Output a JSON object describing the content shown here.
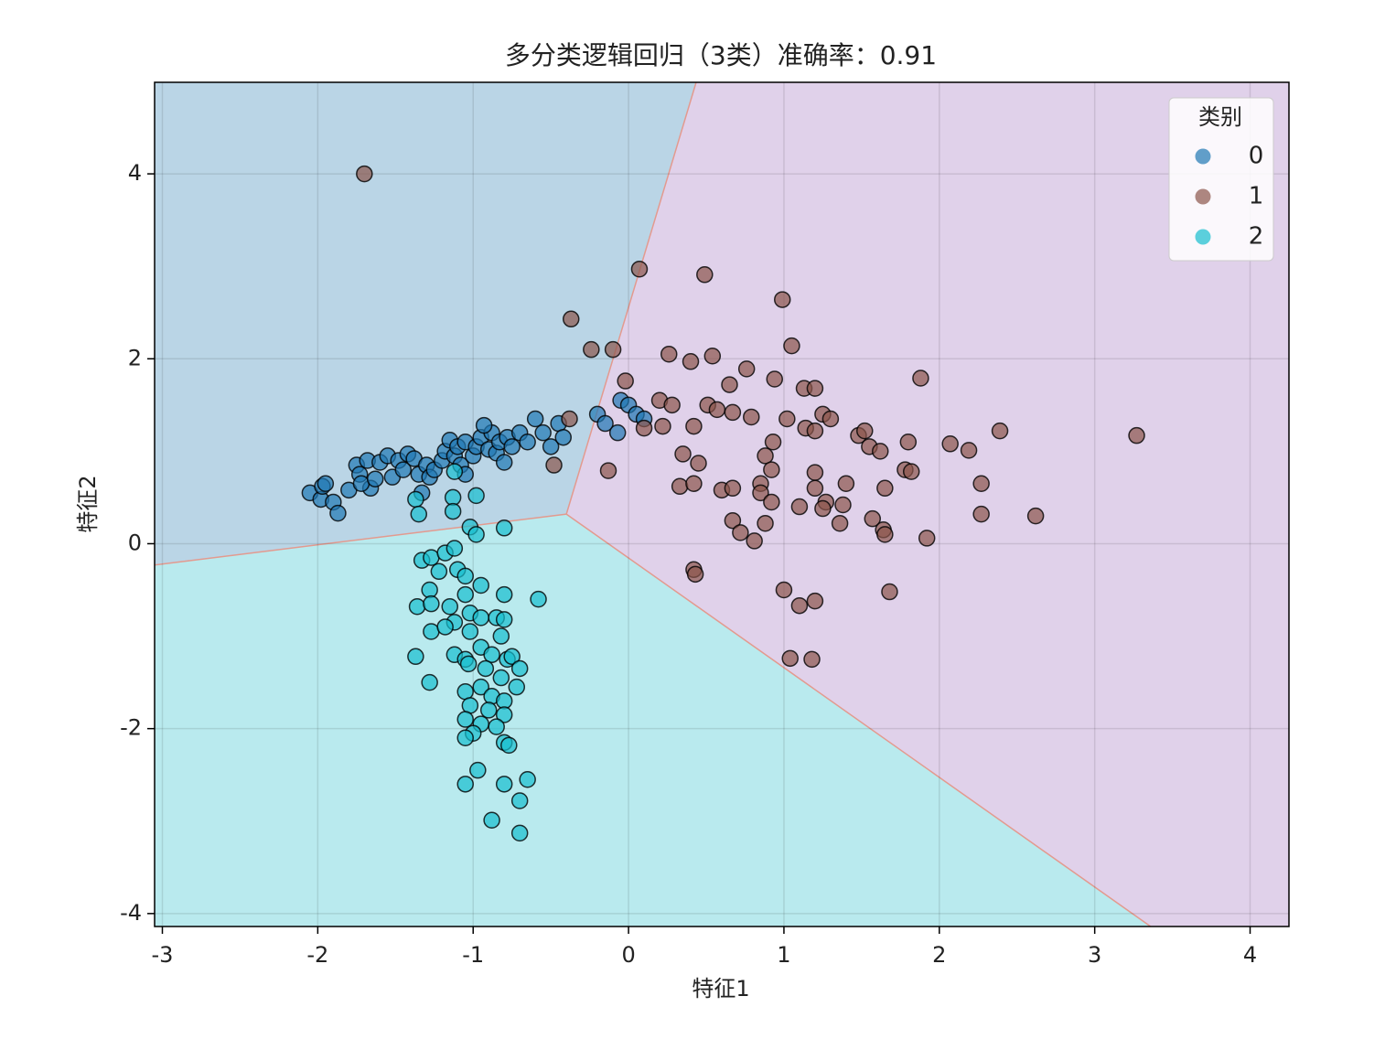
{
  "chart_data": {
    "type": "scatter",
    "title": "多分类逻辑回归（3类）准确率：0.91",
    "x_label": "特征1",
    "y_label": "特征2",
    "xlim": [
      -3.05,
      4.25
    ],
    "ylim": [
      -4.14,
      4.99
    ],
    "xticks": [
      -3,
      -2,
      -1,
      0,
      1,
      2,
      3,
      4
    ],
    "yticks": [
      -4,
      -2,
      0,
      2,
      4
    ],
    "grid": true,
    "legend_title": "类别",
    "legend_position": "upper right",
    "region_colors": [
      "#bad5e6",
      "#e0d1ea",
      "#b9eaee"
    ],
    "decision_boundaries": [
      {
        "x": [
          -3.05,
          -0.4
        ],
        "y": [
          -0.23,
          0.32
        ]
      },
      {
        "x": [
          -0.4,
          0.435
        ],
        "y": [
          0.32,
          4.99
        ]
      },
      {
        "x": [
          -0.4,
          3.36
        ],
        "y": [
          0.32,
          -4.14
        ]
      }
    ],
    "series": [
      {
        "name": "0",
        "color": "#1f77b4",
        "x": [
          -2.05,
          -1.98,
          -1.97,
          -1.95,
          -1.9,
          -1.87,
          -1.8,
          -1.75,
          -1.73,
          -1.68,
          -1.66,
          -1.6,
          -1.55,
          -1.52,
          -1.48,
          -1.45,
          -1.42,
          -1.38,
          -1.35,
          -1.3,
          -1.28,
          -1.25,
          -1.2,
          -1.18,
          -1.15,
          -1.12,
          -1.1,
          -1.08,
          -1.05,
          -1.0,
          -0.98,
          -0.95,
          -0.9,
          -0.88,
          -0.85,
          -0.83,
          -0.8,
          -0.78,
          -0.75,
          -0.7,
          -0.65,
          -0.6,
          -0.55,
          -0.5,
          -0.45,
          -0.42,
          -0.2,
          -0.15,
          -0.05,
          0.0,
          0.05,
          0.1,
          -0.07,
          -0.93,
          -1.33,
          -1.05,
          -1.72,
          -1.63
        ],
        "y": [
          0.55,
          0.48,
          0.62,
          0.65,
          0.45,
          0.33,
          0.58,
          0.85,
          0.75,
          0.9,
          0.6,
          0.88,
          0.95,
          0.72,
          0.9,
          0.8,
          0.97,
          0.92,
          0.75,
          0.85,
          0.72,
          0.8,
          0.9,
          1.0,
          1.12,
          0.95,
          1.05,
          0.85,
          1.1,
          0.95,
          1.05,
          1.15,
          1.02,
          1.2,
          0.98,
          1.1,
          0.88,
          1.15,
          1.05,
          1.2,
          1.1,
          1.35,
          1.2,
          1.05,
          1.3,
          1.15,
          1.4,
          1.3,
          1.55,
          1.5,
          1.4,
          1.35,
          1.2,
          1.28,
          0.55,
          0.75,
          0.65,
          0.7
        ]
      },
      {
        "name": "1",
        "color": "#8c564b",
        "x": [
          -1.7,
          0.07,
          0.49,
          0.99,
          -0.37,
          1.05,
          -0.24,
          -0.1,
          0.26,
          0.4,
          0.54,
          0.76,
          0.65,
          0.94,
          1.88,
          1.13,
          1.2,
          -0.02,
          0.2,
          0.28,
          0.51,
          0.57,
          0.67,
          0.79,
          1.02,
          1.14,
          1.25,
          1.3,
          0.42,
          0.22,
          0.1,
          1.48,
          1.52,
          1.55,
          1.62,
          1.8,
          2.07,
          2.19,
          2.39,
          3.27,
          0.93,
          0.35,
          0.45,
          0.88,
          1.2,
          -0.13,
          -0.48,
          0.33,
          0.42,
          0.6,
          0.67,
          0.85,
          0.92,
          1.2,
          1.27,
          1.38,
          1.4,
          1.1,
          1.25,
          1.78,
          1.65,
          2.27,
          2.27,
          2.62,
          0.85,
          0.92,
          0.67,
          0.72,
          0.81,
          0.88,
          1.36,
          1.57,
          1.64,
          1.65,
          1.92,
          0.42,
          0.43,
          1.0,
          1.1,
          1.2,
          1.68,
          1.04,
          1.18,
          1.82,
          1.2,
          -0.38
        ],
        "y": [
          4.0,
          2.97,
          2.91,
          2.64,
          2.43,
          2.14,
          2.1,
          2.1,
          2.05,
          1.97,
          2.03,
          1.89,
          1.72,
          1.78,
          1.79,
          1.68,
          1.68,
          1.76,
          1.55,
          1.5,
          1.5,
          1.45,
          1.42,
          1.37,
          1.35,
          1.25,
          1.4,
          1.35,
          1.27,
          1.27,
          1.25,
          1.17,
          1.22,
          1.05,
          1.0,
          1.1,
          1.08,
          1.01,
          1.22,
          1.17,
          1.1,
          0.97,
          0.87,
          0.95,
          0.77,
          0.79,
          0.85,
          0.62,
          0.65,
          0.58,
          0.6,
          0.65,
          0.8,
          0.6,
          0.45,
          0.42,
          0.65,
          0.4,
          0.38,
          0.8,
          0.6,
          0.65,
          0.32,
          0.3,
          0.55,
          0.45,
          0.25,
          0.12,
          0.03,
          0.22,
          0.22,
          0.27,
          0.15,
          0.1,
          0.06,
          -0.28,
          -0.33,
          -0.5,
          -0.67,
          -0.62,
          -0.52,
          -1.24,
          -1.25,
          0.78,
          1.22,
          1.35
        ]
      },
      {
        "name": "2",
        "color": "#17becf",
        "x": [
          -1.37,
          -1.35,
          -1.13,
          -1.13,
          -0.98,
          -1.12,
          -1.02,
          -0.98,
          -0.8,
          -1.33,
          -1.27,
          -1.18,
          -1.12,
          -1.22,
          -1.1,
          -1.05,
          -0.95,
          -1.28,
          -1.36,
          -1.27,
          -1.15,
          -1.05,
          -0.8,
          -0.58,
          -1.12,
          -1.02,
          -0.95,
          -0.85,
          -0.8,
          -1.27,
          -1.18,
          -1.02,
          -0.82,
          -1.37,
          -1.12,
          -1.05,
          -0.95,
          -0.88,
          -0.78,
          -0.75,
          -0.7,
          -1.28,
          -1.03,
          -0.92,
          -0.82,
          -0.72,
          -1.05,
          -0.95,
          -0.88,
          -0.8,
          -1.02,
          -0.9,
          -0.8,
          -1.05,
          -0.95,
          -0.85,
          -1.0,
          -0.8,
          -0.77,
          -1.05,
          -0.97,
          -1.05,
          -0.8,
          -0.65,
          -0.7,
          -0.88,
          -0.7
        ],
        "y": [
          0.48,
          0.32,
          0.5,
          0.35,
          0.52,
          0.78,
          0.18,
          0.1,
          0.17,
          -0.18,
          -0.15,
          -0.1,
          -0.05,
          -0.3,
          -0.28,
          -0.35,
          -0.45,
          -0.5,
          -0.68,
          -0.65,
          -0.68,
          -0.55,
          -0.55,
          -0.6,
          -0.85,
          -0.75,
          -0.8,
          -0.8,
          -0.82,
          -0.95,
          -0.9,
          -0.95,
          -1.0,
          -1.22,
          -1.2,
          -1.25,
          -1.12,
          -1.2,
          -1.25,
          -1.22,
          -1.35,
          -1.5,
          -1.3,
          -1.35,
          -1.45,
          -1.55,
          -1.6,
          -1.55,
          -1.65,
          -1.7,
          -1.75,
          -1.8,
          -1.85,
          -1.9,
          -1.95,
          -1.98,
          -2.05,
          -2.15,
          -2.18,
          -2.1,
          -2.45,
          -2.6,
          -2.6,
          -2.55,
          -2.78,
          -2.99,
          -3.13
        ]
      }
    ]
  }
}
